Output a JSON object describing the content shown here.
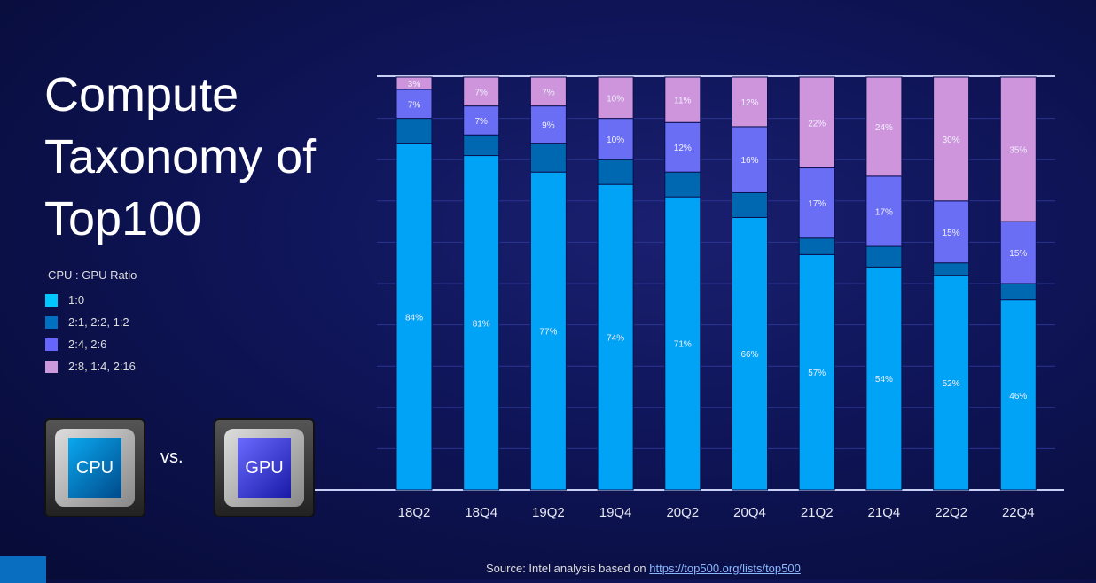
{
  "title": "Compute Taxonomy of Top100",
  "chip_cpu": "CPU",
  "chip_gpu": "GPU",
  "vs": "vs.",
  "source": {
    "text": "Source: Intel analysis based on ",
    "link": "https://top500.org/lists/top500"
  },
  "chart_data": {
    "type": "bar",
    "stacked": true,
    "grid": true,
    "legend_position": "left",
    "legend_title": "CPU : GPU Ratio",
    "categories": [
      "18Q2",
      "18Q4",
      "19Q2",
      "19Q4",
      "20Q2",
      "20Q4",
      "21Q2",
      "21Q4",
      "22Q2",
      "22Q4"
    ],
    "ylim": [
      0,
      100
    ],
    "series": [
      {
        "name": "1:0",
        "color": "#00a3f5",
        "values": [
          84,
          81,
          77,
          74,
          71,
          66,
          57,
          54,
          52,
          46
        ],
        "labeled": true
      },
      {
        "name": "2:1, 2:2, 1:2",
        "color": "#0068b0",
        "values": [
          6,
          5,
          7,
          6,
          6,
          6,
          4,
          5,
          3,
          4
        ],
        "labeled": false
      },
      {
        "name": "2:4, 2:6",
        "color": "#6a6ef5",
        "values": [
          7,
          7,
          9,
          10,
          12,
          16,
          17,
          17,
          15,
          15
        ],
        "labeled": true
      },
      {
        "name": "2:8, 1:4, 2:16",
        "color": "#cf95dc",
        "values": [
          3,
          7,
          7,
          10,
          11,
          12,
          22,
          24,
          30,
          35
        ],
        "labeled": true
      }
    ]
  }
}
